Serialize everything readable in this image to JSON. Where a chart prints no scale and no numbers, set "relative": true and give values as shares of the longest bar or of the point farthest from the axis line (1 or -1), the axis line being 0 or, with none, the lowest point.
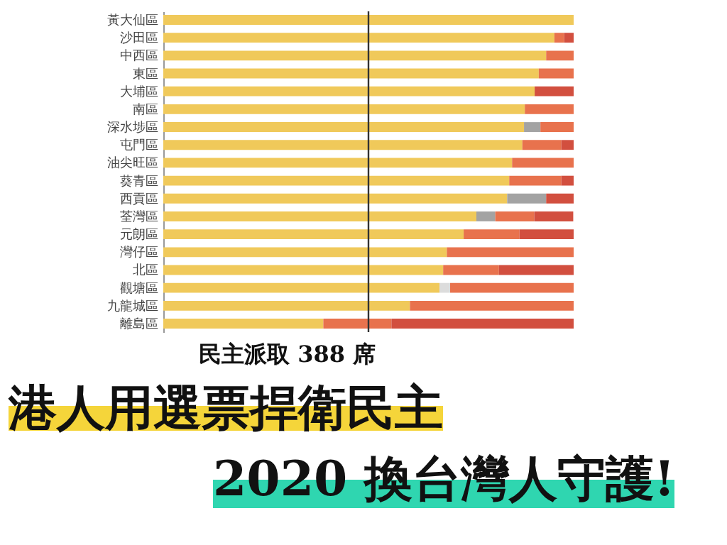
{
  "chart_data": {
    "type": "bar",
    "orientation": "horizontal",
    "stacked": true,
    "relative": true,
    "title": "港人用選票捍衛民主",
    "subtitle": "2020 換台灣人守護!",
    "annotations": [
      "民主派取 388 席"
    ],
    "categories": [
      "黃大仙區",
      "沙田區",
      "中西區",
      "東區",
      "大埔區",
      "南區",
      "深水埗區",
      "屯門區",
      "油尖旺區",
      "葵青區",
      "西貢區",
      "荃灣區",
      "元朗區",
      "灣仔區",
      "北區",
      "觀塘區",
      "九龍城區",
      "離島區"
    ],
    "series": [
      {
        "color": "#f0c95a",
        "values": [
          1,
          0.953,
          0.933,
          0.915,
          0.905,
          0.881,
          0.879,
          0.875,
          0.85,
          0.843,
          0.838,
          0.763,
          0.732,
          0.691,
          0.682,
          0.673,
          0.601,
          0.39
        ]
      },
      {
        "color": "#a3a3a3",
        "values": [
          null,
          null,
          null,
          null,
          null,
          null,
          0.04,
          null,
          null,
          null,
          0.095,
          0.046,
          null,
          null,
          null,
          null,
          null,
          null
        ]
      },
      {
        "color": "#dcdcdc",
        "values": [
          null,
          null,
          null,
          null,
          null,
          null,
          null,
          null,
          null,
          null,
          null,
          null,
          null,
          null,
          null,
          0.026,
          null,
          null
        ]
      },
      {
        "color": "#e8724d",
        "values": [
          null,
          0.024,
          0.067,
          0.085,
          null,
          0.119,
          0.081,
          0.095,
          0.15,
          0.127,
          null,
          0.095,
          0.136,
          0.309,
          0.136,
          0.301,
          0.399,
          0.166
        ]
      },
      {
        "color": "#d24f3f",
        "values": [
          null,
          0.023,
          null,
          null,
          0.095,
          null,
          null,
          0.03,
          null,
          0.03,
          0.067,
          0.095,
          0.132,
          null,
          0.182,
          null,
          null,
          0.444
        ]
      }
    ],
    "ref_lines": [
      {
        "axis": "x",
        "value": 0.5,
        "color": "#333333"
      }
    ]
  }
}
